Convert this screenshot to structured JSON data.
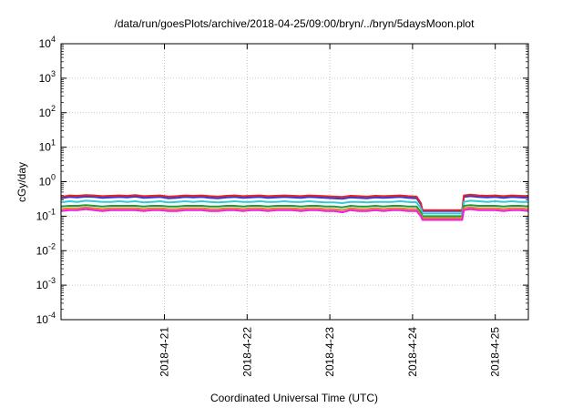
{
  "chart_data": {
    "type": "line",
    "title": "/data/run/goesPlots/archive/2018-04-25/09:00/bryn/../bryn/5daysMoon.plot",
    "xlabel": "Coordinated Universal Time (UTC)",
    "ylabel": "cGy/day",
    "yscale": "log",
    "ylim": [
      0.0001,
      10000
    ],
    "xlim_days": [
      -0.25,
      5.4
    ],
    "grid": true,
    "legend": "none",
    "y_ticks": [
      {
        "value": 0.0001,
        "base": "10",
        "exp": "-4"
      },
      {
        "value": 0.001,
        "base": "10",
        "exp": "-3"
      },
      {
        "value": 0.01,
        "base": "10",
        "exp": "-2"
      },
      {
        "value": 0.1,
        "base": "10",
        "exp": "-1"
      },
      {
        "value": 1,
        "base": "10",
        "exp": "0"
      },
      {
        "value": 10,
        "base": "10",
        "exp": "1"
      },
      {
        "value": 100,
        "base": "10",
        "exp": "2"
      },
      {
        "value": 1000,
        "base": "10",
        "exp": "3"
      },
      {
        "value": 10000,
        "base": "10",
        "exp": "4"
      }
    ],
    "x_ticks": [
      {
        "day": 1,
        "label": "2018-4-21"
      },
      {
        "day": 2,
        "label": "2018-4-22"
      },
      {
        "day": 3,
        "label": "2018-4-23"
      },
      {
        "day": 4,
        "label": "2018-4-24"
      },
      {
        "day": 5,
        "label": "2018-4-25"
      }
    ],
    "x": [
      -0.25,
      -0.15,
      -0.05,
      0.05,
      0.15,
      0.25,
      0.35,
      0.45,
      0.55,
      0.65,
      0.75,
      0.85,
      0.95,
      1.05,
      1.15,
      1.25,
      1.35,
      1.45,
      1.55,
      1.65,
      1.75,
      1.85,
      1.95,
      2.05,
      2.15,
      2.25,
      2.35,
      2.45,
      2.55,
      2.65,
      2.75,
      2.85,
      2.95,
      3.05,
      3.15,
      3.25,
      3.35,
      3.45,
      3.55,
      3.65,
      3.75,
      3.85,
      3.95,
      4.05,
      4.1,
      4.12,
      4.3,
      4.5,
      4.6,
      4.62,
      4.7,
      4.8,
      4.9,
      5.0,
      5.1,
      5.2,
      5.3,
      5.4
    ],
    "series": [
      {
        "color": "#2a3bd8",
        "values": [
          0.33,
          0.36,
          0.35,
          0.37,
          0.36,
          0.34,
          0.35,
          0.36,
          0.35,
          0.37,
          0.34,
          0.35,
          0.36,
          0.33,
          0.34,
          0.36,
          0.35,
          0.36,
          0.34,
          0.33,
          0.35,
          0.36,
          0.34,
          0.35,
          0.36,
          0.34,
          0.35,
          0.36,
          0.35,
          0.34,
          0.36,
          0.35,
          0.34,
          0.33,
          0.32,
          0.35,
          0.34,
          0.33,
          0.35,
          0.34,
          0.35,
          0.36,
          0.34,
          0.33,
          0.22,
          0.14,
          0.14,
          0.14,
          0.14,
          0.36,
          0.38,
          0.36,
          0.35,
          0.36,
          0.34,
          0.36,
          0.35,
          0.34
        ]
      },
      {
        "color": "#e0262b",
        "values": [
          0.36,
          0.4,
          0.39,
          0.41,
          0.4,
          0.38,
          0.39,
          0.4,
          0.39,
          0.41,
          0.38,
          0.39,
          0.4,
          0.37,
          0.38,
          0.4,
          0.39,
          0.4,
          0.38,
          0.37,
          0.39,
          0.4,
          0.38,
          0.39,
          0.4,
          0.38,
          0.39,
          0.4,
          0.39,
          0.38,
          0.4,
          0.39,
          0.38,
          0.37,
          0.36,
          0.39,
          0.38,
          0.37,
          0.39,
          0.38,
          0.39,
          0.4,
          0.38,
          0.37,
          0.24,
          0.15,
          0.15,
          0.15,
          0.15,
          0.4,
          0.42,
          0.4,
          0.39,
          0.4,
          0.38,
          0.4,
          0.39,
          0.38
        ]
      },
      {
        "color": "#35c8d5",
        "values": [
          0.25,
          0.27,
          0.26,
          0.28,
          0.27,
          0.26,
          0.26,
          0.27,
          0.26,
          0.27,
          0.25,
          0.26,
          0.27,
          0.25,
          0.26,
          0.27,
          0.26,
          0.27,
          0.26,
          0.25,
          0.26,
          0.27,
          0.26,
          0.26,
          0.27,
          0.26,
          0.26,
          0.27,
          0.26,
          0.26,
          0.27,
          0.26,
          0.25,
          0.25,
          0.24,
          0.26,
          0.26,
          0.25,
          0.26,
          0.26,
          0.26,
          0.27,
          0.26,
          0.25,
          0.17,
          0.12,
          0.12,
          0.12,
          0.12,
          0.26,
          0.28,
          0.27,
          0.26,
          0.27,
          0.26,
          0.27,
          0.26,
          0.26
        ]
      },
      {
        "color": "#1c9a3a",
        "values": [
          0.19,
          0.2,
          0.2,
          0.21,
          0.2,
          0.19,
          0.2,
          0.2,
          0.2,
          0.2,
          0.19,
          0.2,
          0.2,
          0.19,
          0.19,
          0.2,
          0.2,
          0.2,
          0.19,
          0.19,
          0.2,
          0.2,
          0.19,
          0.2,
          0.2,
          0.19,
          0.2,
          0.2,
          0.2,
          0.19,
          0.2,
          0.2,
          0.19,
          0.19,
          0.18,
          0.2,
          0.19,
          0.19,
          0.2,
          0.19,
          0.2,
          0.2,
          0.19,
          0.19,
          0.13,
          0.1,
          0.1,
          0.1,
          0.1,
          0.2,
          0.21,
          0.2,
          0.2,
          0.2,
          0.19,
          0.2,
          0.2,
          0.19
        ]
      },
      {
        "color": "#e27d2a",
        "values": [
          0.16,
          0.17,
          0.17,
          0.18,
          0.17,
          0.16,
          0.17,
          0.17,
          0.17,
          0.17,
          0.16,
          0.17,
          0.17,
          0.16,
          0.16,
          0.17,
          0.17,
          0.17,
          0.16,
          0.16,
          0.17,
          0.17,
          0.16,
          0.17,
          0.17,
          0.16,
          0.17,
          0.17,
          0.17,
          0.16,
          0.17,
          0.17,
          0.16,
          0.16,
          0.15,
          0.17,
          0.16,
          0.16,
          0.17,
          0.16,
          0.17,
          0.17,
          0.16,
          0.16,
          0.11,
          0.088,
          0.088,
          0.088,
          0.088,
          0.17,
          0.18,
          0.17,
          0.17,
          0.17,
          0.16,
          0.17,
          0.17,
          0.16
        ]
      },
      {
        "color": "#ee1fe0",
        "values": [
          0.14,
          0.15,
          0.15,
          0.16,
          0.15,
          0.14,
          0.15,
          0.15,
          0.15,
          0.15,
          0.14,
          0.15,
          0.15,
          0.14,
          0.14,
          0.15,
          0.15,
          0.15,
          0.14,
          0.14,
          0.15,
          0.15,
          0.14,
          0.15,
          0.15,
          0.14,
          0.15,
          0.15,
          0.15,
          0.14,
          0.15,
          0.15,
          0.14,
          0.14,
          0.13,
          0.15,
          0.14,
          0.14,
          0.15,
          0.14,
          0.15,
          0.15,
          0.14,
          0.14,
          0.1,
          0.078,
          0.078,
          0.078,
          0.078,
          0.15,
          0.16,
          0.15,
          0.15,
          0.15,
          0.14,
          0.15,
          0.15,
          0.14
        ]
      }
    ]
  }
}
